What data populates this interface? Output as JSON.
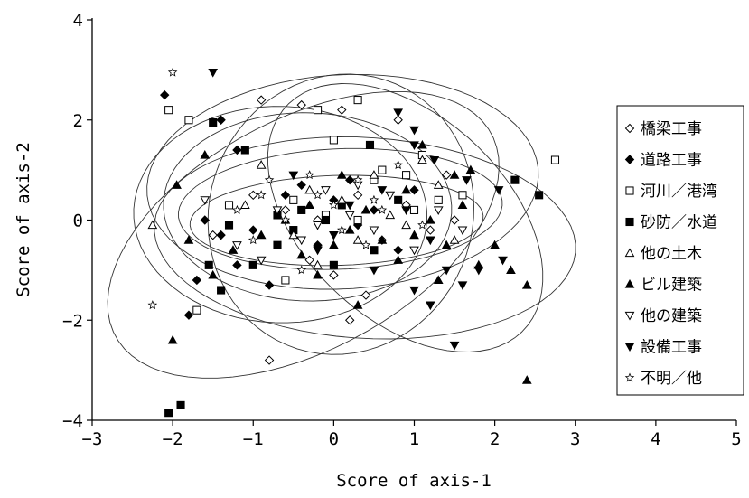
{
  "chart_data": {
    "type": "scatter",
    "xlabel": "Score of axis-1",
    "ylabel": "Score of axis-2",
    "xlim": [
      -3,
      5
    ],
    "ylim": [
      -4,
      4
    ],
    "xticks": [
      -3,
      -2,
      -1,
      0,
      1,
      2,
      3,
      4,
      5
    ],
    "yticks": [
      4,
      2,
      0,
      -2,
      -4
    ],
    "x_tick_labels": [
      "−3",
      "−2",
      "−1",
      "0",
      "1",
      "2",
      "3",
      "4",
      "5"
    ],
    "y_tick_labels": [
      "4",
      "2",
      "0",
      "−2",
      "−4"
    ],
    "grid": false,
    "legend_position": "right",
    "series": [
      {
        "name": "橋梁工事",
        "marker": "diamond-open",
        "points": [
          [
            -0.9,
            2.4
          ],
          [
            -0.4,
            2.3
          ],
          [
            0.1,
            2.2
          ],
          [
            0.8,
            2.0
          ],
          [
            -0.6,
            0.2
          ],
          [
            -0.2,
            0.0
          ],
          [
            0.3,
            0.5
          ],
          [
            0.9,
            0.3
          ],
          [
            0.6,
            -0.4
          ],
          [
            -0.3,
            -0.8
          ],
          [
            0.4,
            -1.5
          ],
          [
            0.2,
            -2.0
          ],
          [
            -0.8,
            -2.8
          ],
          [
            -1.5,
            -0.3
          ],
          [
            -1.0,
            0.5
          ],
          [
            1.4,
            0.9
          ],
          [
            0.0,
            -1.1
          ],
          [
            1.2,
            -0.2
          ],
          [
            1.5,
            0.0
          ]
        ]
      },
      {
        "name": "道路工事",
        "marker": "diamond-filled",
        "points": [
          [
            -2.1,
            2.5
          ],
          [
            -1.4,
            2.0
          ],
          [
            -1.2,
            1.4
          ],
          [
            -1.6,
            0.0
          ],
          [
            -1.7,
            -1.2
          ],
          [
            -1.8,
            -1.9
          ],
          [
            -1.4,
            -0.3
          ],
          [
            -0.8,
            -1.3
          ],
          [
            -0.4,
            0.7
          ],
          [
            0.0,
            0.4
          ],
          [
            0.2,
            0.8
          ],
          [
            0.5,
            0.2
          ],
          [
            -0.2,
            -0.5
          ],
          [
            0.8,
            -0.6
          ],
          [
            -1.0,
            -0.2
          ],
          [
            0.3,
            -0.1
          ],
          [
            -0.6,
            0.5
          ],
          [
            1.0,
            0.6
          ],
          [
            -1.2,
            -0.9
          ]
        ]
      },
      {
        "name": "河川／港湾",
        "marker": "square-open",
        "points": [
          [
            -2.05,
            2.2
          ],
          [
            -1.8,
            2.0
          ],
          [
            0.3,
            2.4
          ],
          [
            -0.2,
            2.2
          ],
          [
            0.0,
            1.6
          ],
          [
            0.9,
            0.9
          ],
          [
            1.3,
            0.4
          ],
          [
            1.0,
            0.2
          ],
          [
            -0.5,
            0.4
          ],
          [
            -1.3,
            0.3
          ],
          [
            0.3,
            0.0
          ],
          [
            -0.6,
            -1.2
          ],
          [
            -1.7,
            -1.8
          ],
          [
            2.75,
            1.2
          ],
          [
            0.6,
            1.0
          ],
          [
            1.6,
            0.5
          ],
          [
            0.5,
            0.8
          ],
          [
            -0.1,
            0.1
          ],
          [
            1.1,
            1.3
          ]
        ]
      },
      {
        "name": "砂防／水道",
        "marker": "square-filled",
        "points": [
          [
            -1.5,
            1.95
          ],
          [
            -1.1,
            1.4
          ],
          [
            0.45,
            1.5
          ],
          [
            -1.3,
            -0.1
          ],
          [
            -1.55,
            -0.9
          ],
          [
            -1.4,
            -1.4
          ],
          [
            -1.0,
            -0.9
          ],
          [
            -0.7,
            -0.5
          ],
          [
            -0.4,
            0.2
          ],
          [
            -0.1,
            0.0
          ],
          [
            0.1,
            0.3
          ],
          [
            0.5,
            -0.6
          ],
          [
            -0.5,
            -0.2
          ],
          [
            2.25,
            0.8
          ],
          [
            2.55,
            0.5
          ],
          [
            -2.05,
            -3.85
          ],
          [
            -1.9,
            -3.7
          ],
          [
            -0.7,
            0.1
          ],
          [
            0.0,
            -0.9
          ],
          [
            0.8,
            0.4
          ]
        ]
      },
      {
        "name": "他の土木",
        "marker": "triangle-up-open",
        "points": [
          [
            -2.25,
            -0.1
          ],
          [
            -0.9,
            1.1
          ],
          [
            -0.3,
            0.6
          ],
          [
            0.1,
            0.4
          ],
          [
            0.5,
            0.9
          ],
          [
            1.1,
            1.2
          ],
          [
            1.3,
            0.7
          ],
          [
            0.9,
            -0.1
          ],
          [
            -0.5,
            -0.3
          ],
          [
            -0.2,
            -0.9
          ],
          [
            0.7,
            0.1
          ],
          [
            -1.1,
            0.3
          ],
          [
            0.3,
            -0.4
          ],
          [
            1.5,
            -0.4
          ]
        ]
      },
      {
        "name": "ビル建築",
        "marker": "triangle-up-filled",
        "points": [
          [
            -2.0,
            -2.4
          ],
          [
            -1.95,
            0.7
          ],
          [
            -1.6,
            1.3
          ],
          [
            -1.8,
            -0.4
          ],
          [
            -1.5,
            -1.1
          ],
          [
            -1.25,
            -0.6
          ],
          [
            -0.9,
            -0.3
          ],
          [
            -0.6,
            0.0
          ],
          [
            -0.3,
            0.3
          ],
          [
            0.0,
            -0.5
          ],
          [
            0.2,
            -0.2
          ],
          [
            0.4,
            0.2
          ],
          [
            0.6,
            -0.4
          ],
          [
            0.8,
            -0.8
          ],
          [
            1.0,
            -0.3
          ],
          [
            1.2,
            0.0
          ],
          [
            1.4,
            -0.5
          ],
          [
            1.6,
            0.3
          ],
          [
            1.8,
            -0.9
          ],
          [
            2.0,
            -0.5
          ],
          [
            2.2,
            -1.0
          ],
          [
            2.4,
            -1.3
          ],
          [
            2.4,
            -3.2
          ],
          [
            1.1,
            1.5
          ],
          [
            1.5,
            0.9
          ],
          [
            0.3,
            -1.7
          ],
          [
            -0.2,
            -1.1
          ],
          [
            1.7,
            1.0
          ],
          [
            0.1,
            0.9
          ],
          [
            -0.4,
            -0.7
          ],
          [
            0.9,
            0.6
          ],
          [
            1.3,
            -1.2
          ]
        ]
      },
      {
        "name": "他の建築",
        "marker": "triangle-down-open",
        "points": [
          [
            -1.6,
            0.4
          ],
          [
            -1.2,
            -0.5
          ],
          [
            -0.7,
            0.2
          ],
          [
            -0.4,
            -0.4
          ],
          [
            -0.1,
            0.6
          ],
          [
            0.2,
            0.1
          ],
          [
            0.5,
            -0.2
          ],
          [
            0.7,
            0.5
          ],
          [
            1.0,
            -0.6
          ],
          [
            1.3,
            0.2
          ],
          [
            -0.9,
            -0.8
          ],
          [
            0.3,
            0.7
          ],
          [
            1.6,
            -0.2
          ],
          [
            -0.2,
            -0.1
          ]
        ]
      },
      {
        "name": "設備工事",
        "marker": "triangle-down-filled",
        "points": [
          [
            -1.5,
            2.95
          ],
          [
            0.8,
            2.15
          ],
          [
            1.0,
            1.8
          ],
          [
            1.0,
            1.5
          ],
          [
            1.25,
            1.2
          ],
          [
            0.9,
            0.2
          ],
          [
            1.2,
            -0.4
          ],
          [
            1.4,
            -1.0
          ],
          [
            1.6,
            -1.3
          ],
          [
            1.8,
            -1.0
          ],
          [
            2.1,
            -0.8
          ],
          [
            1.0,
            -1.4
          ],
          [
            0.5,
            -1.0
          ],
          [
            -0.2,
            -0.6
          ],
          [
            0.2,
            0.3
          ],
          [
            0.6,
            0.6
          ],
          [
            1.5,
            -2.5
          ],
          [
            1.2,
            -1.7
          ],
          [
            -0.5,
            0.9
          ],
          [
            0.0,
            -0.3
          ],
          [
            2.05,
            0.6
          ],
          [
            1.65,
            0.8
          ]
        ]
      },
      {
        "name": "不明／他",
        "marker": "star-open",
        "points": [
          [
            -2.0,
            2.95
          ],
          [
            -2.25,
            -1.7
          ],
          [
            -1.2,
            0.2
          ],
          [
            -0.9,
            0.5
          ],
          [
            -0.6,
            0.0
          ],
          [
            -0.3,
            0.9
          ],
          [
            0.0,
            0.3
          ],
          [
            0.3,
            0.8
          ],
          [
            0.6,
            0.2
          ],
          [
            0.8,
            1.1
          ],
          [
            -0.4,
            -1.0
          ],
          [
            -1.0,
            -0.4
          ],
          [
            0.4,
            -0.5
          ],
          [
            -0.8,
            0.8
          ],
          [
            1.1,
            -0.1
          ],
          [
            0.1,
            -0.2
          ],
          [
            -0.2,
            0.5
          ],
          [
            0.5,
            0.4
          ]
        ]
      }
    ]
  }
}
